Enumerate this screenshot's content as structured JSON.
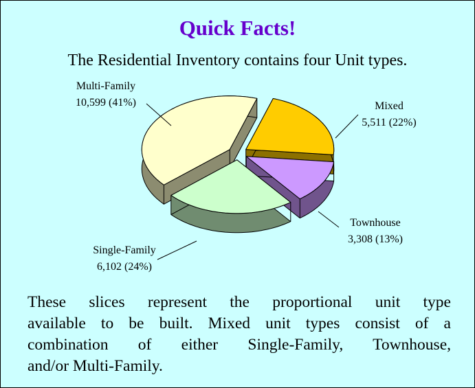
{
  "title": "Quick Facts!",
  "intro": "The Residential Inventory contains four Unit types.",
  "paragraph": [
    "These slices represent the proportional unit type",
    "available to be built.  Mixed unit types consist of a",
    "combination of either Single-Family, Townhouse,",
    "and/or Multi-Family."
  ],
  "chart_data": {
    "type": "pie",
    "categories": [
      "Multi-Family",
      "Mixed",
      "Townhouse",
      "Single-Family"
    ],
    "values": [
      10599,
      5511,
      3308,
      6102
    ],
    "value_labels": [
      "10,599 (41%)",
      "5,511 (22%)",
      "3,308 (13%)",
      "6,102 (24%)"
    ],
    "colors": [
      "#ffffcc",
      "#ffcc00",
      "#cc99ff",
      "#ccffcc"
    ]
  }
}
